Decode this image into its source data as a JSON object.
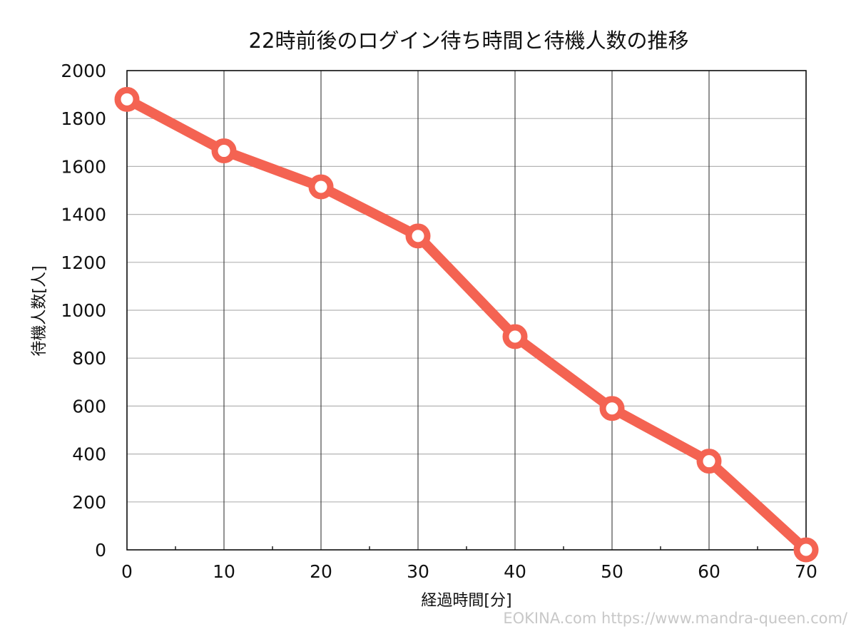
{
  "chart_data": {
    "type": "line",
    "title": "22時前後のログイン待ち時間と待機人数の推移",
    "xlabel": "経過時間[分]",
    "ylabel": "待機人数[人]",
    "x": [
      0,
      10,
      20,
      30,
      40,
      50,
      60,
      70
    ],
    "series": [
      {
        "values": [
          1880,
          1665,
          1515,
          1310,
          890,
          590,
          370,
          0
        ],
        "color": "#f46352"
      }
    ],
    "xlim": [
      0,
      70
    ],
    "ylim": [
      0,
      2000
    ],
    "x_ticks": [
      0,
      10,
      20,
      30,
      40,
      50,
      60,
      70
    ],
    "y_ticks": [
      0,
      200,
      400,
      600,
      800,
      1000,
      1200,
      1400,
      1600,
      1800,
      2000
    ],
    "x_tick_labels": [
      "0",
      "10",
      "20",
      "30",
      "40",
      "50",
      "60",
      "70"
    ],
    "y_tick_labels": [
      "0",
      "200",
      "400",
      "600",
      "800",
      "1000",
      "1200",
      "1400",
      "1600",
      "1800",
      "2000"
    ],
    "grid": true,
    "legend": "none"
  },
  "watermark": "EOKINA.com  https://www.mandra-queen.com/"
}
